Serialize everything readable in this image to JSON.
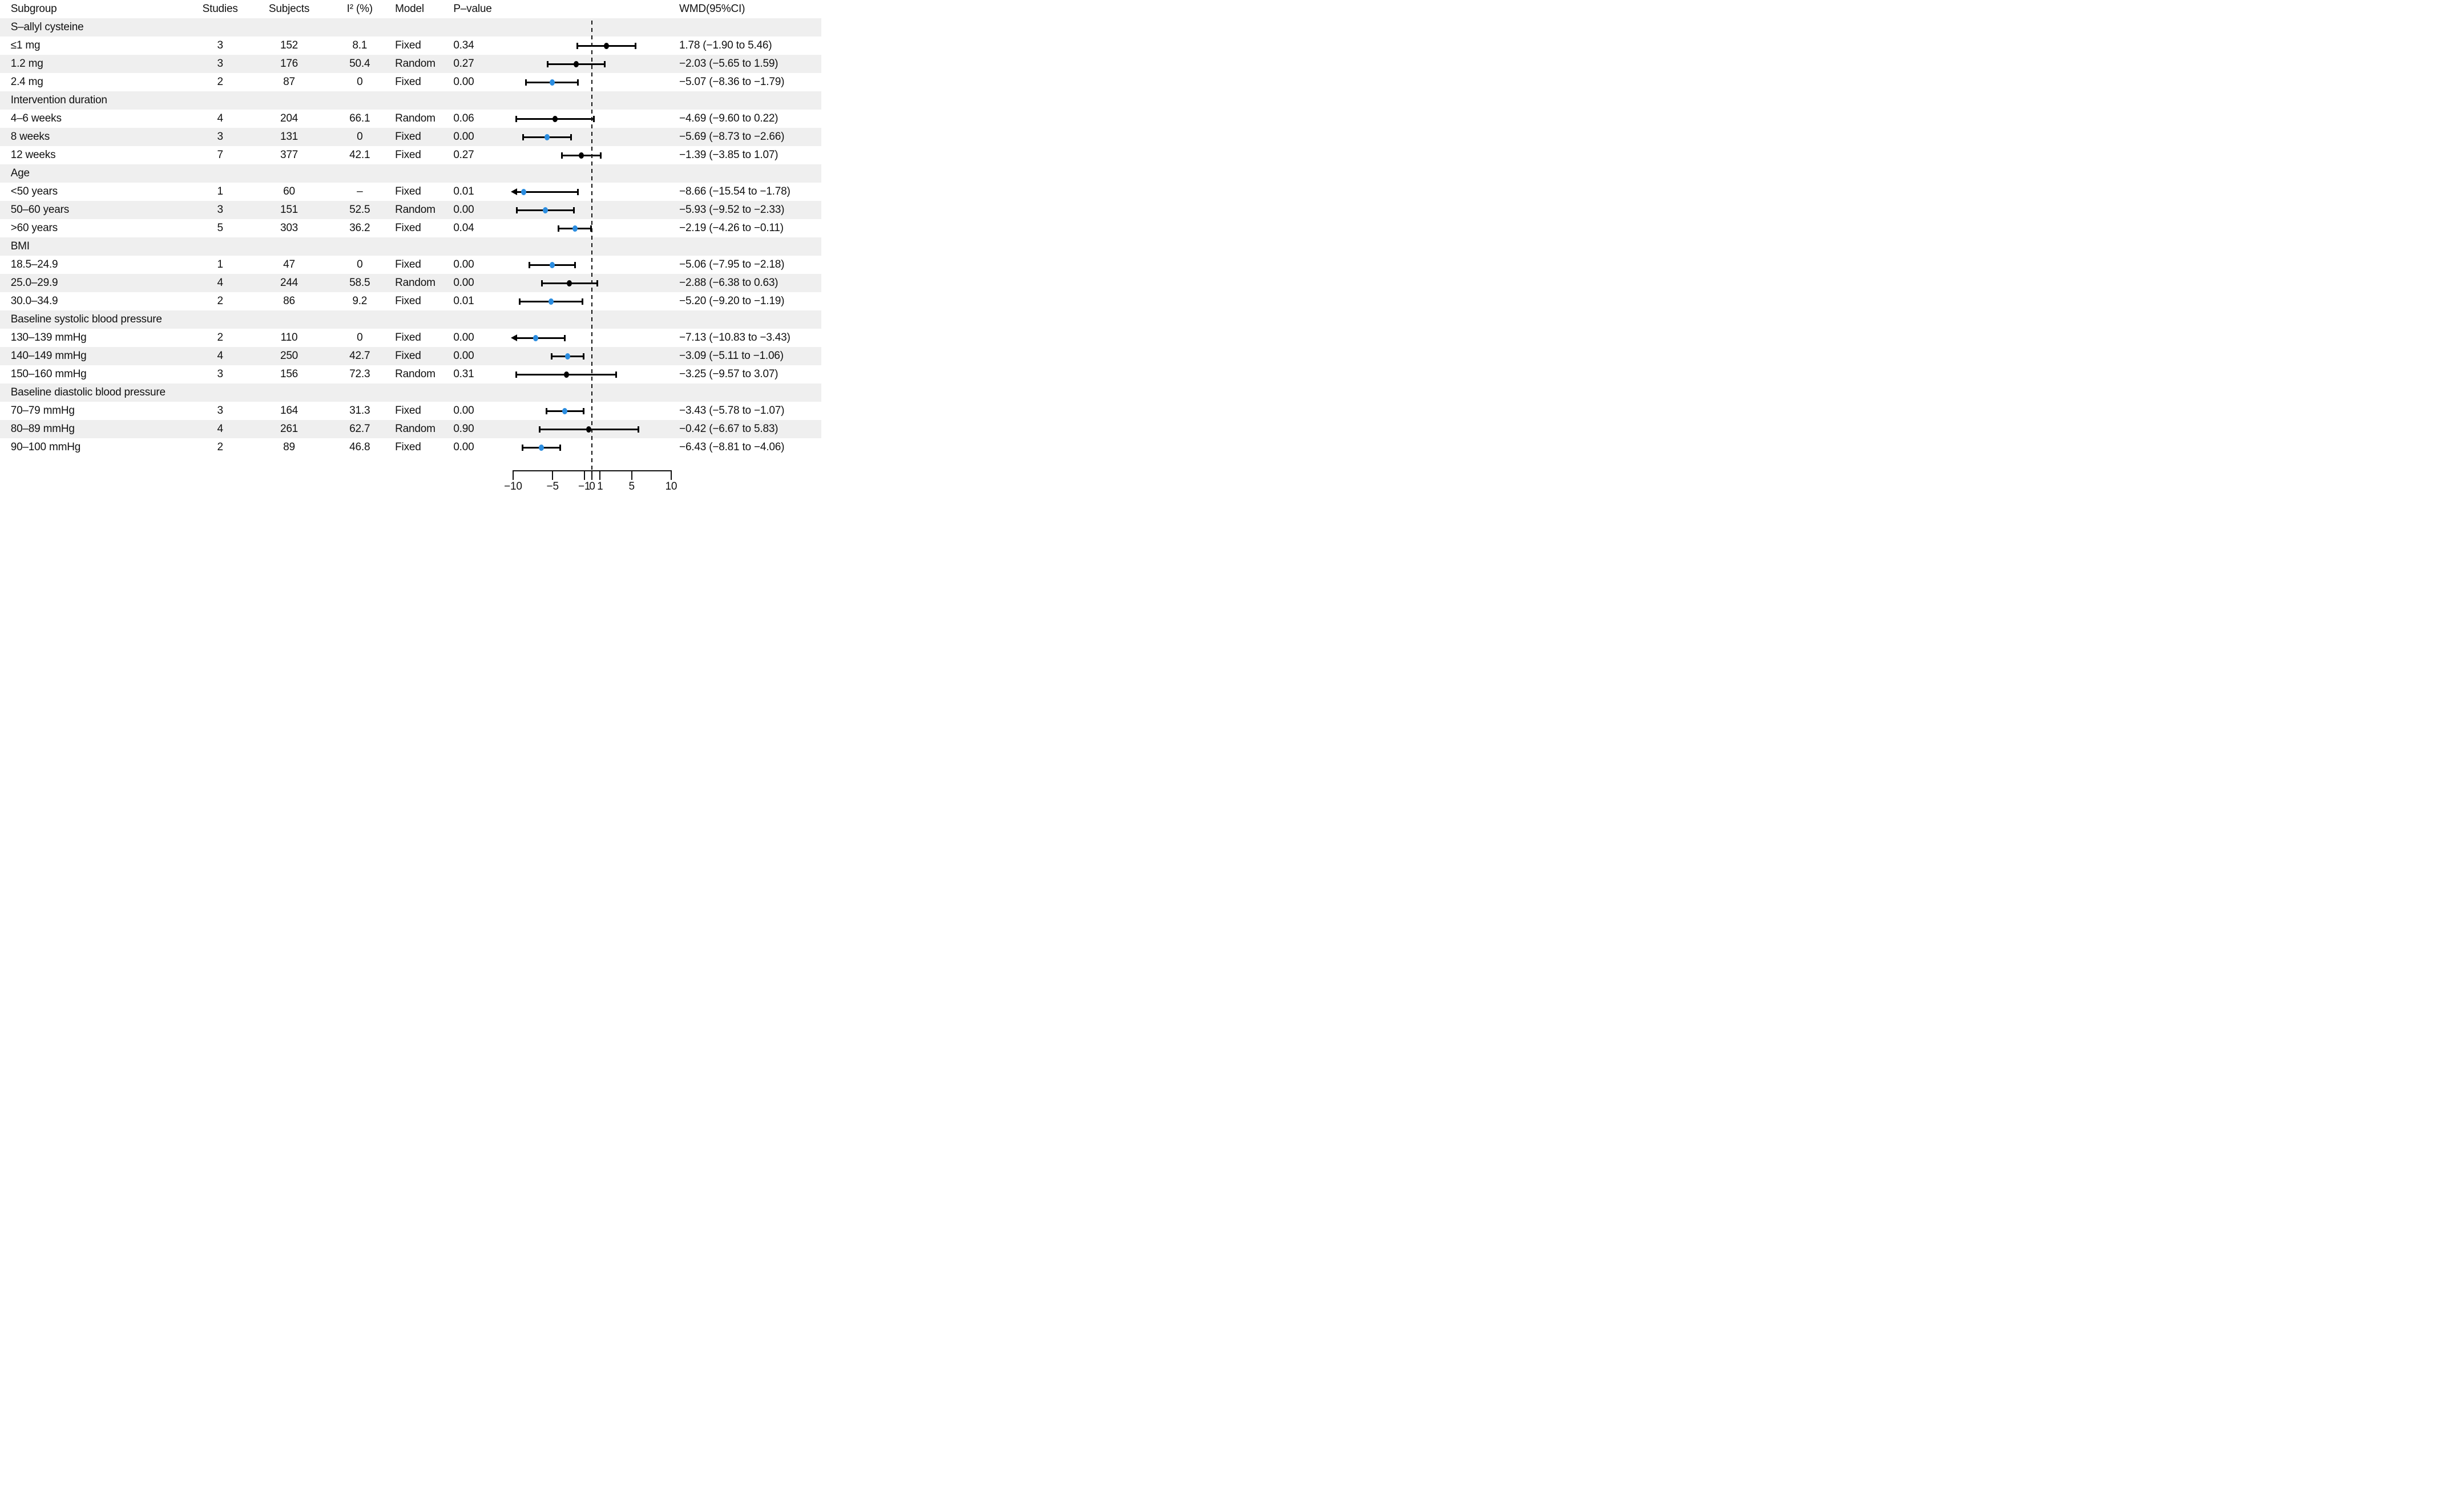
{
  "figure": {
    "columns": {
      "subgroup": "Subgroup",
      "studies": "Studies",
      "subjects": "Subjects",
      "i2": "I² (%)",
      "model": "Model",
      "pvalue": "P–value",
      "wmd": "WMD(95%CI)"
    },
    "colors": {
      "significant_dot": "#2b8de0",
      "nonsignificant_dot": "#000000",
      "row_band": "#efefef",
      "text": "#111111"
    }
  },
  "chart_data": {
    "type": "forest",
    "title": "",
    "xlabel": "",
    "xlim": [
      -10,
      10
    ],
    "null_line": 0,
    "axis_ticks": [
      -10,
      -5,
      -1,
      0,
      1,
      5,
      10
    ],
    "axis_tick_labels": [
      "−10",
      "−5",
      "−1",
      "0",
      "1",
      "5",
      "10"
    ],
    "legend": "blue dot = statistically significant WMD, black dot = non-significant; left arrow = CI truncated at −10",
    "rows": [
      {
        "type": "section",
        "label": "S–allyl cysteine"
      },
      {
        "type": "data",
        "label": "≤1 mg",
        "studies": "3",
        "subjects": "152",
        "i2": "8.1",
        "model": "Fixed",
        "p": "0.34",
        "est": 1.78,
        "lo": -1.9,
        "hi": 5.46,
        "significant": false,
        "wmd": "1.78 (−1.90 to 5.46)"
      },
      {
        "type": "data",
        "label": "1.2 mg",
        "studies": "3",
        "subjects": "176",
        "i2": "50.4",
        "model": "Random",
        "p": "0.27",
        "est": -2.03,
        "lo": -5.65,
        "hi": 1.59,
        "significant": false,
        "wmd": "−2.03 (−5.65 to 1.59)"
      },
      {
        "type": "data",
        "label": "2.4 mg",
        "studies": "2",
        "subjects": "87",
        "i2": "0",
        "model": "Fixed",
        "p": "0.00",
        "est": -5.07,
        "lo": -8.36,
        "hi": -1.79,
        "significant": true,
        "wmd": "−5.07 (−8.36 to −1.79)"
      },
      {
        "type": "section",
        "label": "Intervention duration"
      },
      {
        "type": "data",
        "label": "4–6 weeks",
        "studies": "4",
        "subjects": "204",
        "i2": "66.1",
        "model": "Random",
        "p": "0.06",
        "est": -4.69,
        "lo": -9.6,
        "hi": 0.22,
        "significant": false,
        "wmd": "−4.69 (−9.60 to 0.22)"
      },
      {
        "type": "data",
        "label": "8 weeks",
        "studies": "3",
        "subjects": "131",
        "i2": "0",
        "model": "Fixed",
        "p": "0.00",
        "est": -5.69,
        "lo": -8.73,
        "hi": -2.66,
        "significant": true,
        "wmd": "−5.69 (−8.73 to −2.66)"
      },
      {
        "type": "data",
        "label": "12 weeks",
        "studies": "7",
        "subjects": "377",
        "i2": "42.1",
        "model": "Fixed",
        "p": "0.27",
        "est": -1.39,
        "lo": -3.85,
        "hi": 1.07,
        "significant": false,
        "wmd": "−1.39 (−3.85 to 1.07)"
      },
      {
        "type": "section",
        "label": "Age"
      },
      {
        "type": "data",
        "label": "<50 years",
        "studies": "1",
        "subjects": "60",
        "i2": "–",
        "model": "Fixed",
        "p": "0.01",
        "est": -8.66,
        "lo": -15.54,
        "hi": -1.78,
        "significant": true,
        "wmd": "−8.66 (−15.54 to −1.78)"
      },
      {
        "type": "data",
        "label": "50–60 years",
        "studies": "3",
        "subjects": "151",
        "i2": "52.5",
        "model": "Random",
        "p": "0.00",
        "est": -5.93,
        "lo": -9.52,
        "hi": -2.33,
        "significant": true,
        "wmd": "−5.93 (−9.52 to −2.33)"
      },
      {
        "type": "data",
        "label": ">60 years",
        "studies": "5",
        "subjects": "303",
        "i2": "36.2",
        "model": "Fixed",
        "p": "0.04",
        "est": -2.19,
        "lo": -4.26,
        "hi": -0.11,
        "significant": true,
        "wmd": "−2.19 (−4.26 to −0.11)"
      },
      {
        "type": "section",
        "label": "BMI"
      },
      {
        "type": "data",
        "label": "18.5–24.9",
        "studies": "1",
        "subjects": "47",
        "i2": "0",
        "model": "Fixed",
        "p": "0.00",
        "est": -5.06,
        "lo": -7.95,
        "hi": -2.18,
        "significant": true,
        "wmd": "−5.06 (−7.95 to −2.18)"
      },
      {
        "type": "data",
        "label": "25.0–29.9",
        "studies": "4",
        "subjects": "244",
        "i2": "58.5",
        "model": "Random",
        "p": "0.00",
        "est": -2.88,
        "lo": -6.38,
        "hi": 0.63,
        "significant": false,
        "wmd": "−2.88 (−6.38 to 0.63)"
      },
      {
        "type": "data",
        "label": "30.0–34.9",
        "studies": "2",
        "subjects": "86",
        "i2": "9.2",
        "model": "Fixed",
        "p": "0.01",
        "est": -5.2,
        "lo": -9.2,
        "hi": -1.19,
        "significant": true,
        "wmd": "−5.20 (−9.20 to −1.19)"
      },
      {
        "type": "section",
        "label": "Baseline systolic blood pressure"
      },
      {
        "type": "data",
        "label": "130–139 mmHg",
        "studies": "2",
        "subjects": "110",
        "i2": "0",
        "model": "Fixed",
        "p": "0.00",
        "est": -7.13,
        "lo": -10.83,
        "hi": -3.43,
        "significant": true,
        "wmd": "−7.13 (−10.83 to −3.43)"
      },
      {
        "type": "data",
        "label": "140–149 mmHg",
        "studies": "4",
        "subjects": "250",
        "i2": "42.7",
        "model": "Fixed",
        "p": "0.00",
        "est": -3.09,
        "lo": -5.11,
        "hi": -1.06,
        "significant": true,
        "wmd": "−3.09 (−5.11 to −1.06)"
      },
      {
        "type": "data",
        "label": "150–160 mmHg",
        "studies": "3",
        "subjects": "156",
        "i2": "72.3",
        "model": "Random",
        "p": "0.31",
        "est": -3.25,
        "lo": -9.57,
        "hi": 3.07,
        "significant": false,
        "wmd": "−3.25 (−9.57 to 3.07)"
      },
      {
        "type": "section",
        "label": "Baseline diastolic blood pressure"
      },
      {
        "type": "data",
        "label": "70–79 mmHg",
        "studies": "3",
        "subjects": "164",
        "i2": "31.3",
        "model": "Fixed",
        "p": "0.00",
        "est": -3.43,
        "lo": -5.78,
        "hi": -1.07,
        "significant": true,
        "wmd": "−3.43 (−5.78 to −1.07)"
      },
      {
        "type": "data",
        "label": "80–89 mmHg",
        "studies": "4",
        "subjects": "261",
        "i2": "62.7",
        "model": "Random",
        "p": "0.90",
        "est": -0.42,
        "lo": -6.67,
        "hi": 5.83,
        "significant": false,
        "wmd": "−0.42 (−6.67 to 5.83)"
      },
      {
        "type": "data",
        "label": "90–100 mmHg",
        "studies": "2",
        "subjects": "89",
        "i2": "46.8",
        "model": "Fixed",
        "p": "0.00",
        "est": -6.43,
        "lo": -8.81,
        "hi": -4.06,
        "significant": true,
        "wmd": "−6.43 (−8.81 to −4.06)"
      }
    ]
  }
}
